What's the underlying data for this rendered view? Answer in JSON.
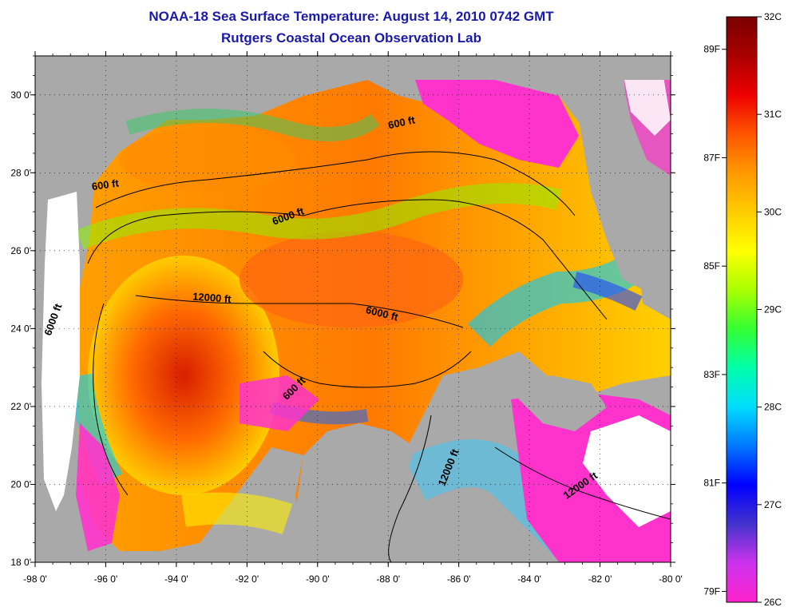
{
  "title": {
    "line1": "NOAA-18 Sea Surface Temperature:  August 14, 2010 0742 GMT",
    "line2": "Rutgers Coastal Ocean Observation Lab"
  },
  "map": {
    "lon_range": [
      -98,
      -80
    ],
    "lat_range": [
      18,
      31
    ],
    "lon_ticks": [
      "-98 0'",
      "-96 0'",
      "-94 0'",
      "-92 0'",
      "-90 0'",
      "-88 0'",
      "-86 0'",
      "-84 0'",
      "-82 0'",
      "-80 0'"
    ],
    "lat_ticks": [
      "18 0'",
      "20 0'",
      "22 0'",
      "24 0'",
      "26 0'",
      "28 0'",
      "30 0'"
    ],
    "contour_labels": [
      {
        "text": "600 ft",
        "lon": -96.0,
        "lat": 27.6,
        "angle": -8
      },
      {
        "text": "600 ft",
        "lon": -87.6,
        "lat": 29.2,
        "angle": -12
      },
      {
        "text": "6000 ft",
        "lon": -90.8,
        "lat": 26.8,
        "angle": -20
      },
      {
        "text": "12000 ft",
        "lon": -93.0,
        "lat": 24.7,
        "angle": 4
      },
      {
        "text": "6000 ft",
        "lon": -88.2,
        "lat": 24.3,
        "angle": 14
      },
      {
        "text": "6000 ft",
        "lon": -97.4,
        "lat": 24.2,
        "angle": -70
      },
      {
        "text": "600 ft",
        "lon": -90.6,
        "lat": 22.4,
        "angle": -45
      },
      {
        "text": "12000 ft",
        "lon": -86.2,
        "lat": 20.4,
        "angle": -68
      },
      {
        "text": "12000 ft",
        "lon": -82.5,
        "lat": 19.9,
        "angle": -35
      }
    ],
    "colors": {
      "land": "#a9a9a9",
      "cloud": "#ffffff",
      "cold": "#ff33cc",
      "hot": "#cc1100"
    }
  },
  "colorbar": {
    "celsius_labels": [
      "32C",
      "31C",
      "30C",
      "29C",
      "28C",
      "27C",
      "26C"
    ],
    "fahrenheit_labels": [
      "89F",
      "87F",
      "85F",
      "83F",
      "81F",
      "79F"
    ],
    "range_c": [
      26,
      32
    ],
    "range_f": [
      79,
      89.6
    ],
    "stops": [
      "#ff22cc",
      "#cc33ee",
      "#4433cc",
      "#0000ff",
      "#0077ff",
      "#00ddff",
      "#00ffaa",
      "#33ff33",
      "#aaff00",
      "#ffff00",
      "#ffcc00",
      "#ff9900",
      "#ff5500",
      "#ee0000",
      "#aa0000",
      "#7a0000"
    ]
  }
}
